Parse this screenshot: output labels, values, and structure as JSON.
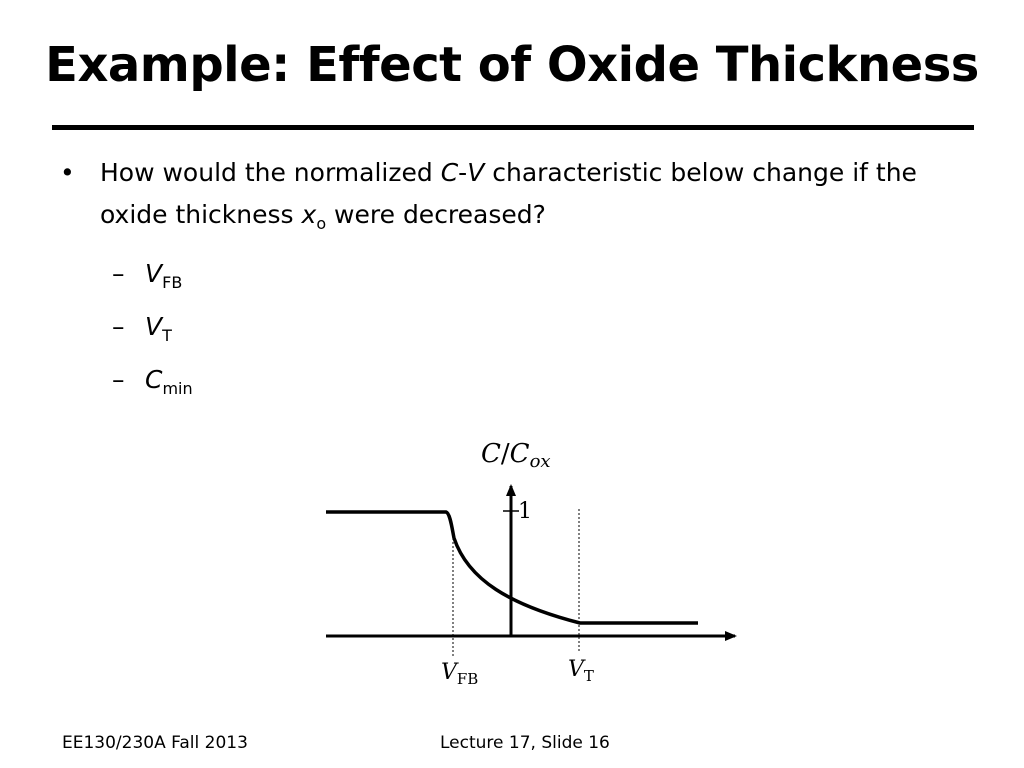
{
  "slide": {
    "title": "Example: Effect of Oxide Thickness",
    "question": {
      "t1": "How would the normalized ",
      "t2": "C",
      "t3": "-",
      "t4": "V",
      "t5": " characteristic below change if the oxide thickness ",
      "t6": "x",
      "t7": "o",
      "t8": " were decreased?"
    },
    "subitems": [
      {
        "symbol": "V",
        "subscript": "FB"
      },
      {
        "symbol": "V",
        "subscript": "T"
      },
      {
        "symbol": "C",
        "subscript": "min"
      }
    ],
    "bullet_glyph": "•",
    "dash_glyph": "–"
  },
  "graph": {
    "y_axis_label": {
      "main": "C",
      "slash": "/",
      "den": "C",
      "den_sub": "ox"
    },
    "tick_label": "1",
    "vfb_label": {
      "main": "V",
      "sub": "FB"
    },
    "vt_label": {
      "main": "V",
      "sub": "T"
    }
  },
  "footer": {
    "course": "EE130/230A Fall 2013",
    "slide_number": "Lecture 17, Slide 16"
  }
}
